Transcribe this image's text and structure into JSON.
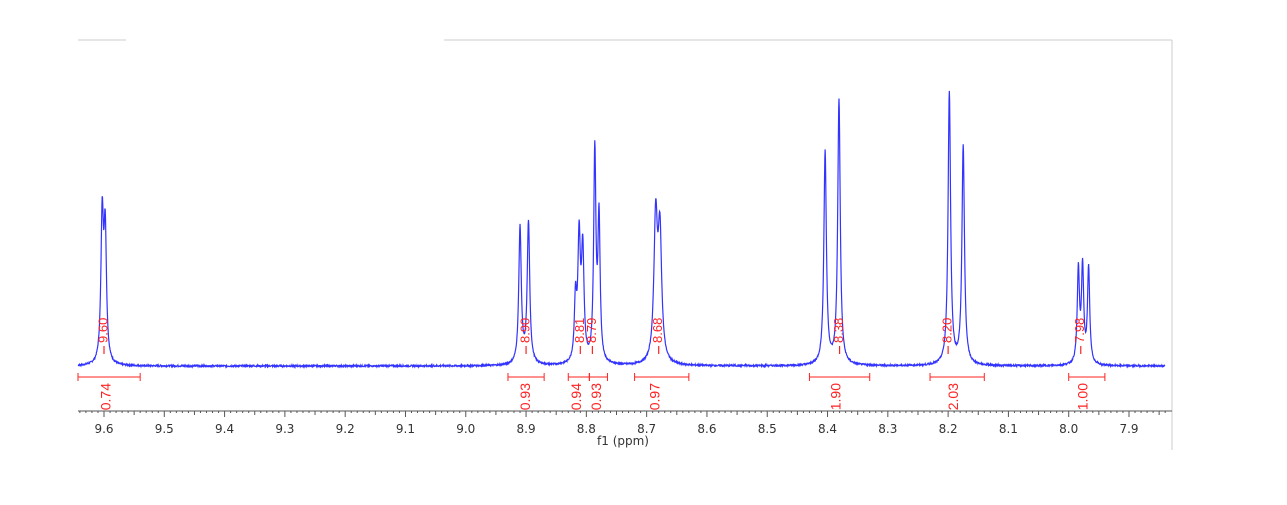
{
  "chart_data": {
    "type": "line",
    "xlabel": "f1 (ppm)",
    "x_reversed": true,
    "xlim": [
      9.66,
      7.84
    ],
    "xticks": [
      9.6,
      9.5,
      9.4,
      9.3,
      9.2,
      9.1,
      9.0,
      8.9,
      8.8,
      8.7,
      8.6,
      8.5,
      8.4,
      8.3,
      8.2,
      8.1,
      8.0,
      7.9
    ],
    "xtick_labels": [
      "9.6",
      "9.5",
      "9.4",
      "9.3",
      "9.2",
      "9.1",
      "9.0",
      "8.9",
      "8.8",
      "8.7",
      "8.6",
      "8.5",
      "8.4",
      "8.3",
      "8.2",
      "8.1",
      "8.0",
      "7.9"
    ],
    "ylim": [
      0,
      1
    ],
    "grid": false,
    "colors": {
      "spectrum": "#3333ff",
      "annotation": "#ff2222",
      "axis": "#555555",
      "frame": "#cccccc"
    },
    "signals": [
      {
        "x": 9.603,
        "h": 0.53,
        "w": 0.0025
      },
      {
        "x": 9.598,
        "h": 0.47,
        "w": 0.0025
      },
      {
        "x": 8.91,
        "h": 0.5,
        "w": 0.0025
      },
      {
        "x": 8.896,
        "h": 0.52,
        "w": 0.0025
      },
      {
        "x": 8.818,
        "h": 0.22,
        "w": 0.0022
      },
      {
        "x": 8.812,
        "h": 0.44,
        "w": 0.0025
      },
      {
        "x": 8.806,
        "h": 0.4,
        "w": 0.0025
      },
      {
        "x": 8.786,
        "h": 0.77,
        "w": 0.0022
      },
      {
        "x": 8.779,
        "h": 0.52,
        "w": 0.0022
      },
      {
        "x": 8.685,
        "h": 0.52,
        "w": 0.0035
      },
      {
        "x": 8.678,
        "h": 0.46,
        "w": 0.0035
      },
      {
        "x": 8.404,
        "h": 0.78,
        "w": 0.0025
      },
      {
        "x": 8.381,
        "h": 0.97,
        "w": 0.0025
      },
      {
        "x": 8.198,
        "h": 1.0,
        "w": 0.0025
      },
      {
        "x": 8.175,
        "h": 0.8,
        "w": 0.0025
      },
      {
        "x": 7.984,
        "h": 0.34,
        "w": 0.0022
      },
      {
        "x": 7.977,
        "h": 0.35,
        "w": 0.0022
      },
      {
        "x": 7.967,
        "h": 0.35,
        "w": 0.0022
      }
    ],
    "peak_labels": [
      {
        "x": 9.6,
        "text": "9.60"
      },
      {
        "x": 8.9,
        "text": "8.90"
      },
      {
        "x": 8.81,
        "text": "8.81"
      },
      {
        "x": 8.79,
        "text": "8.79"
      },
      {
        "x": 8.68,
        "text": "8.68"
      },
      {
        "x": 8.38,
        "text": "8.38"
      },
      {
        "x": 8.2,
        "text": "8.20"
      },
      {
        "x": 7.98,
        "text": "7.98"
      }
    ],
    "integrals": [
      {
        "from": 9.66,
        "to": 9.54,
        "label_x": 9.595,
        "text": "0.74"
      },
      {
        "from": 8.93,
        "to": 8.87,
        "label_x": 8.9,
        "text": "0.93"
      },
      {
        "from": 8.83,
        "to": 8.795,
        "label_x": 8.815,
        "text": "0.94"
      },
      {
        "from": 8.795,
        "to": 8.765,
        "label_x": 8.782,
        "text": "0.93"
      },
      {
        "from": 8.72,
        "to": 8.63,
        "label_x": 8.685,
        "text": "0.97"
      },
      {
        "from": 8.43,
        "to": 8.33,
        "label_x": 8.385,
        "text": "1.90"
      },
      {
        "from": 8.23,
        "to": 8.14,
        "label_x": 8.19,
        "text": "2.03"
      },
      {
        "from": 8.0,
        "to": 7.94,
        "label_x": 7.975,
        "text": "1.00"
      }
    ]
  }
}
